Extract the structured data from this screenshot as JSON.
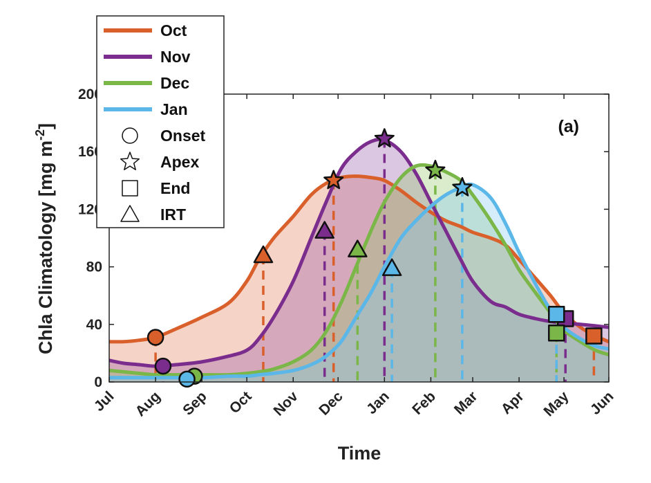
{
  "chart_data": {
    "type": "area",
    "panel_label": "(a)",
    "xlabel": "Time",
    "ylabel": "Chla Climatology [mg m",
    "ylabel_unit_sup": "-2",
    "ylabel_close": "]",
    "ylim": [
      0,
      200
    ],
    "yticks": [
      0,
      40,
      80,
      120,
      160,
      200
    ],
    "xlim": [
      0,
      334
    ],
    "xticks": [
      {
        "label": "Jul",
        "x": 0
      },
      {
        "label": "Aug",
        "x": 31
      },
      {
        "label": "Sep",
        "x": 62
      },
      {
        "label": "Oct",
        "x": 92
      },
      {
        "label": "Nov",
        "x": 123
      },
      {
        "label": "Dec",
        "x": 153
      },
      {
        "label": "Jan",
        "x": 184
      },
      {
        "label": "Feb",
        "x": 215
      },
      {
        "label": "Mar",
        "x": 243
      },
      {
        "label": "Apr",
        "x": 274
      },
      {
        "label": "May",
        "x": 304
      },
      {
        "label": "Jun",
        "x": 334
      }
    ],
    "grid": false,
    "legend_position": "top-left",
    "series": [
      {
        "name": "Oct",
        "color": "#D95F2B",
        "fill": "rgba(230,130,95,0.35)",
        "x": [
          0,
          10,
          20,
          31,
          45,
          62,
          80,
          92,
          100,
          110,
          123,
          135,
          145,
          155,
          165,
          175,
          184,
          195,
          205,
          215,
          225,
          235,
          243,
          255,
          265,
          274,
          285,
          295,
          304,
          315,
          325,
          334
        ],
        "y": [
          28,
          28,
          29,
          31,
          37,
          45,
          55,
          70,
          85,
          100,
          115,
          130,
          138,
          142,
          143,
          142,
          140,
          133,
          125,
          118,
          112,
          108,
          104,
          100,
          95,
          85,
          72,
          60,
          48,
          38,
          32,
          28
        ],
        "markers": {
          "onset": {
            "x": 31,
            "y": 31
          },
          "irt": {
            "x": 103,
            "y": 88
          },
          "apex": {
            "x": 150,
            "y": 140
          },
          "end": {
            "x": 324,
            "y": 32
          }
        }
      },
      {
        "name": "Nov",
        "color": "#7B2D8E",
        "fill": "rgba(140,70,160,0.30)",
        "x": [
          0,
          10,
          20,
          31,
          45,
          62,
          80,
          92,
          100,
          110,
          123,
          135,
          145,
          155,
          165,
          175,
          184,
          195,
          205,
          215,
          225,
          235,
          243,
          255,
          265,
          274,
          285,
          295,
          304,
          315,
          325,
          334
        ],
        "y": [
          15,
          13,
          12,
          11,
          12,
          14,
          18,
          22,
          30,
          45,
          70,
          100,
          125,
          148,
          160,
          167,
          168,
          160,
          145,
          125,
          105,
          85,
          70,
          56,
          52,
          47,
          44,
          42,
          41,
          40,
          39,
          38
        ],
        "markers": {
          "onset": {
            "x": 36,
            "y": 11
          },
          "irt": {
            "x": 144,
            "y": 105
          },
          "apex": {
            "x": 184,
            "y": 169
          },
          "end": {
            "x": 305,
            "y": 44
          }
        }
      },
      {
        "name": "Dec",
        "color": "#7AB648",
        "fill": "rgba(150,200,110,0.35)",
        "x": [
          0,
          10,
          20,
          31,
          45,
          62,
          80,
          92,
          100,
          110,
          123,
          135,
          145,
          155,
          165,
          175,
          184,
          195,
          205,
          215,
          225,
          235,
          243,
          255,
          265,
          274,
          285,
          295,
          304,
          315,
          325,
          334
        ],
        "y": [
          8,
          7,
          6,
          5,
          5,
          5,
          5,
          6,
          7,
          9,
          14,
          22,
          35,
          55,
          80,
          105,
          125,
          142,
          150,
          150,
          146,
          140,
          130,
          112,
          95,
          78,
          62,
          48,
          36,
          28,
          22,
          19
        ],
        "markers": {
          "onset": {
            "x": 57,
            "y": 4
          },
          "irt": {
            "x": 166,
            "y": 92
          },
          "apex": {
            "x": 218,
            "y": 147
          },
          "end": {
            "x": 299,
            "y": 34
          }
        }
      },
      {
        "name": "Jan",
        "color": "#5BB7E8",
        "fill": "rgba(135,200,240,0.35)",
        "x": [
          0,
          10,
          20,
          31,
          45,
          62,
          80,
          92,
          100,
          110,
          123,
          135,
          145,
          155,
          165,
          175,
          184,
          195,
          205,
          215,
          225,
          235,
          243,
          255,
          265,
          274,
          285,
          295,
          304,
          315,
          325,
          334
        ],
        "y": [
          3,
          3,
          3,
          3,
          3,
          3,
          4,
          4,
          5,
          6,
          8,
          12,
          18,
          28,
          45,
          62,
          80,
          100,
          112,
          122,
          130,
          135,
          137,
          128,
          110,
          90,
          68,
          50,
          38,
          30,
          25,
          23
        ],
        "markers": {
          "onset": {
            "x": 52,
            "y": 2
          },
          "irt": {
            "x": 189,
            "y": 79
          },
          "apex": {
            "x": 236,
            "y": 135
          },
          "end": {
            "x": 299,
            "y": 47
          }
        }
      }
    ],
    "marker_legend": [
      {
        "symbol": "circle",
        "label": "Onset"
      },
      {
        "symbol": "star",
        "label": "Apex"
      },
      {
        "symbol": "square",
        "label": "End"
      },
      {
        "symbol": "triangle",
        "label": "IRT"
      }
    ]
  }
}
